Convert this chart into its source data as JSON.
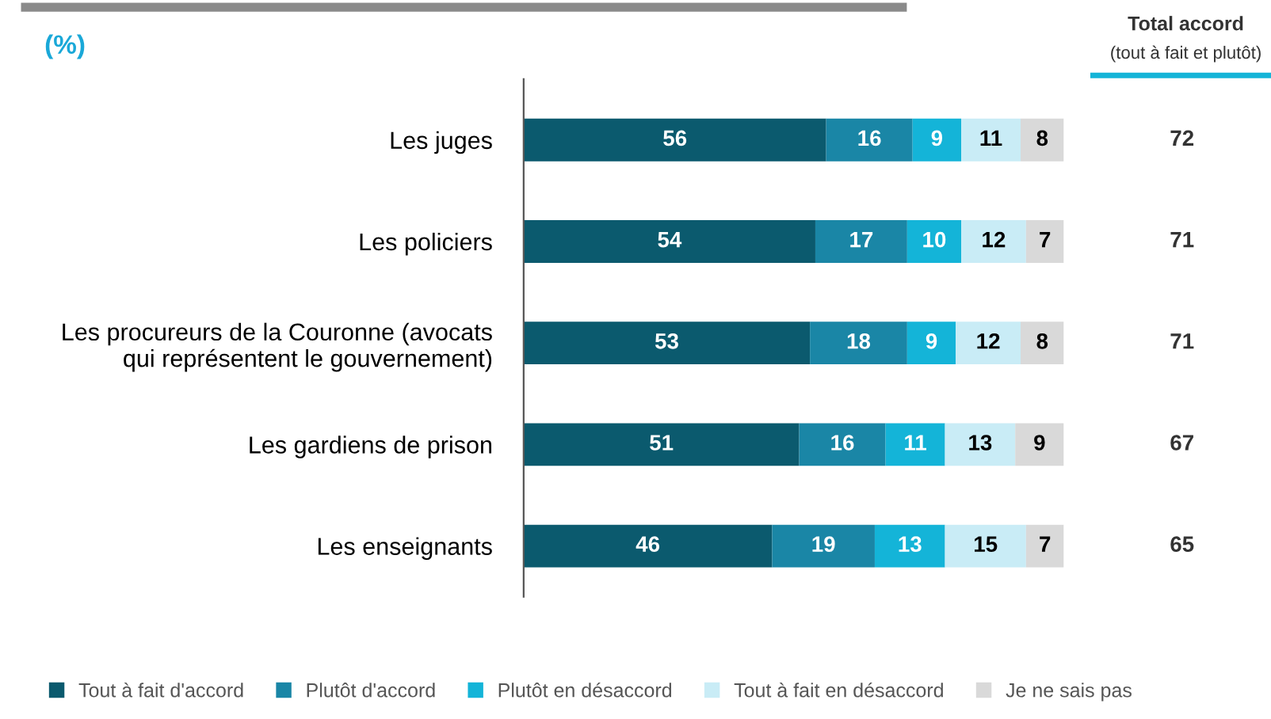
{
  "chart_data": {
    "type": "bar",
    "orientation": "horizontal",
    "stacked": true,
    "ylabel": "(%)",
    "categories": [
      "Les juges",
      "Les policiers",
      "Les procureurs de la Couronne (avocats\nqui représentent le gouvernement)",
      "Les gardiens de prison",
      "Les enseignants"
    ],
    "series": [
      {
        "name": "Tout à fait d'accord",
        "color": "#0b5a6e",
        "values": [
          56,
          54,
          53,
          51,
          46
        ]
      },
      {
        "name": "Plutôt d'accord",
        "color": "#1a86a6",
        "values": [
          16,
          17,
          18,
          16,
          19
        ]
      },
      {
        "name": "Plutôt en désaccord",
        "color": "#14b4d8",
        "values": [
          9,
          10,
          9,
          11,
          13
        ]
      },
      {
        "name": "Tout à fait en désaccord",
        "color": "#c9ecf6",
        "values": [
          11,
          12,
          12,
          13,
          15
        ]
      },
      {
        "name": "Je ne sais pas",
        "color": "#d9d9d9",
        "values": [
          8,
          7,
          8,
          9,
          7
        ]
      }
    ],
    "data_labels": true,
    "annotations": [
      "Total accord",
      "(tout à fait et plutôt)",
      "72",
      "71",
      "71",
      "67",
      "65"
    ],
    "legend": "bottom",
    "marker": "square",
    "grid": false
  }
}
